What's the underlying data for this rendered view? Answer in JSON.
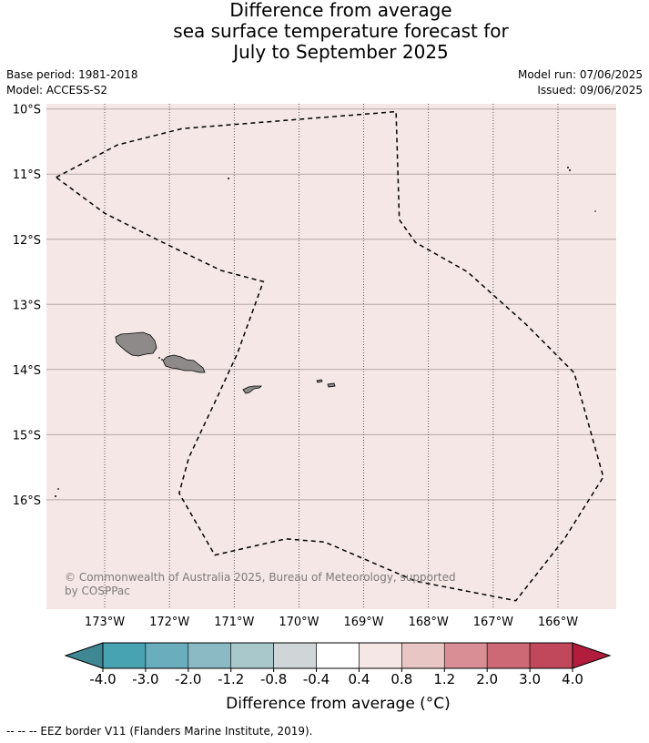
{
  "title": {
    "line1": "Difference from average",
    "line2": "sea surface temperature forecast for",
    "line3": "July to September 2025"
  },
  "meta": {
    "base_period": "Base period: 1981-2018",
    "model": "Model: ACCESS-S2",
    "model_run": "Model run: 07/06/2025",
    "issued": "Issued: 09/06/2025"
  },
  "map": {
    "lat_labels": [
      "10°S",
      "11°S",
      "12°S",
      "13°S",
      "14°S",
      "15°S",
      "16°S"
    ],
    "lon_labels": [
      "173°W",
      "172°W",
      "171°W",
      "170°W",
      "169°W",
      "168°W",
      "167°W",
      "166°W"
    ],
    "lat_values": [
      -10,
      -11,
      -12,
      -13,
      -14,
      -15,
      -16
    ],
    "lon_values": [
      -173,
      -172,
      -171,
      -170,
      -169,
      -168,
      -167,
      -166
    ],
    "extent": {
      "lon_min": -173.9,
      "lon_max": -165.1,
      "lat_max": -9.92,
      "lat_min": -17.68
    },
    "background_color": "#f4e7e6",
    "land_color": "#8e8a89",
    "copyright": "© Commonwealth of Australia 2025, Bureau of Meteorology, supported",
    "copyright_line2": "by COSPPac",
    "eez_border": [
      [
        -173.75,
        -11.05
      ],
      [
        -172.8,
        -10.55
      ],
      [
        -171.8,
        -10.3
      ],
      [
        -168.5,
        -10.04
      ],
      [
        -168.45,
        -11.7
      ],
      [
        -168.2,
        -12.05
      ],
      [
        -167.4,
        -12.5
      ],
      [
        -166.5,
        -13.3
      ],
      [
        -165.75,
        -14.05
      ],
      [
        -165.3,
        -15.65
      ],
      [
        -165.9,
        -16.6
      ],
      [
        -166.65,
        -17.55
      ],
      [
        -168.2,
        -17.25
      ],
      [
        -169.6,
        -16.65
      ],
      [
        -170.2,
        -16.6
      ],
      [
        -171.3,
        -16.85
      ],
      [
        -171.85,
        -15.9
      ],
      [
        -171.7,
        -15.35
      ],
      [
        -171.25,
        -14.4
      ],
      [
        -170.95,
        -13.75
      ],
      [
        -170.55,
        -12.65
      ],
      [
        -171.2,
        -12.48
      ],
      [
        -172.1,
        -12.05
      ],
      [
        -173.0,
        -11.6
      ],
      [
        -173.75,
        -11.05
      ]
    ]
  },
  "colorbar": {
    "title": "Difference from average (°C)",
    "tick_labels": [
      "-4.0",
      "-3.0",
      "-2.0",
      "-1.2",
      "-0.8",
      "-0.4",
      "0.4",
      "0.8",
      "1.2",
      "2.0",
      "3.0",
      "4.0"
    ],
    "under_color": "#3f8793",
    "over_color": "#b21c3d",
    "colors": [
      "#47a2b2",
      "#6aadbc",
      "#8bbac4",
      "#a9c8cb",
      "#d0d6d7",
      "#ffffff",
      "#f4e7e6",
      "#e8c6c3",
      "#d98e95",
      "#cd6975",
      "#c1485b"
    ]
  },
  "footnote": "-- -- -- EEZ border V11 (Flanders Marine Institute, 2019)."
}
